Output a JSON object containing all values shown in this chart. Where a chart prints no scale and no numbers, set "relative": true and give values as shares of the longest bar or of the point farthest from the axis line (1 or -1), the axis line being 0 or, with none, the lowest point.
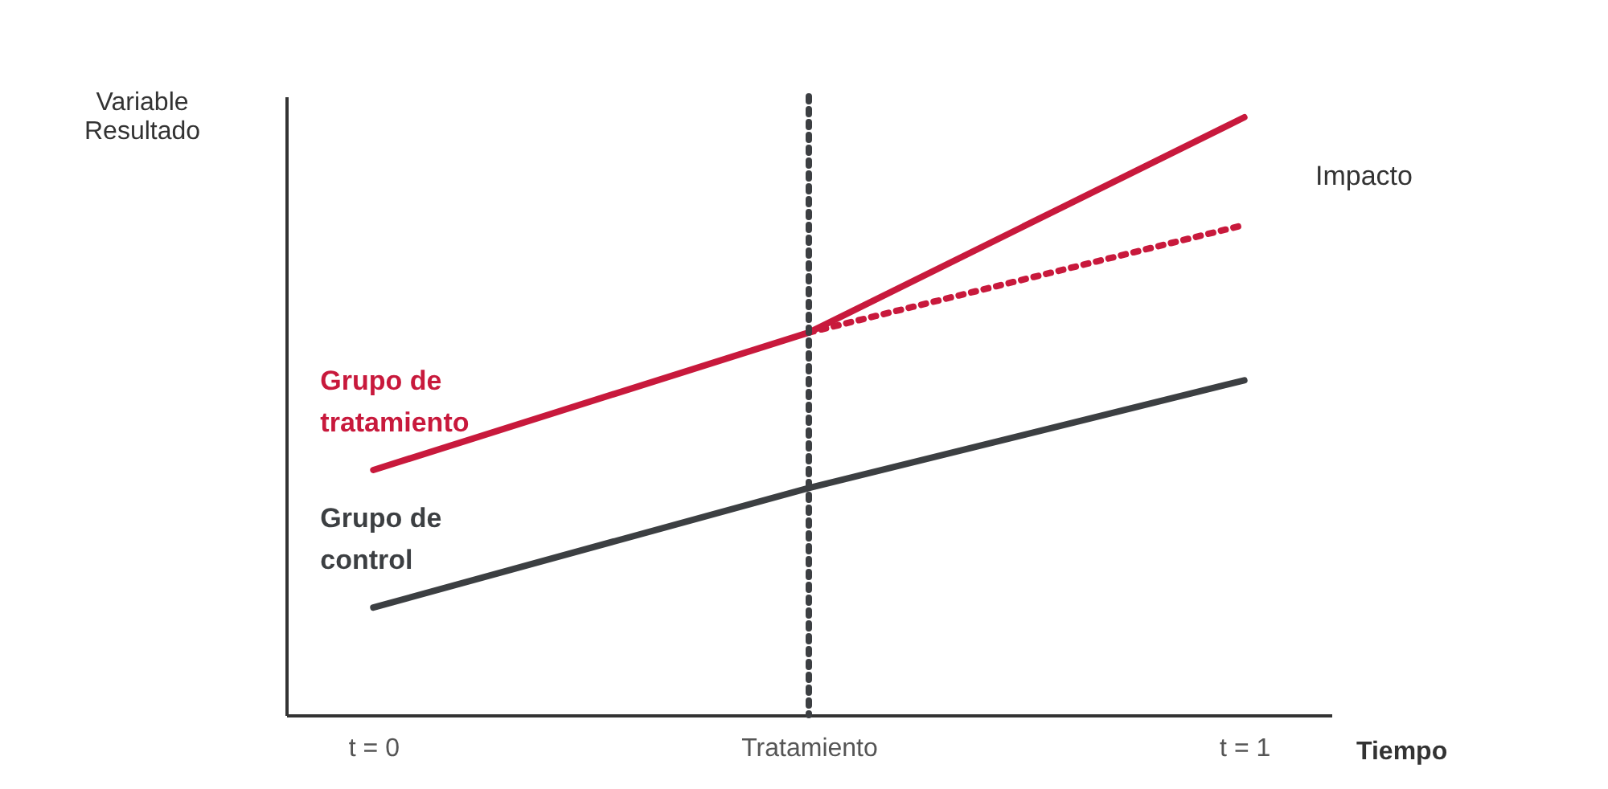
{
  "chart_data": {
    "type": "line",
    "relative": true,
    "categories": [
      "t = 0",
      "Tratamiento",
      "t = 1"
    ],
    "ylabel": "Variable Resultado",
    "xlabel": "Tiempo",
    "series": [
      {
        "name": "Grupo de tratamiento",
        "color": "#c8193c",
        "values": [
          0.41,
          0.64,
          1
        ],
        "line_style": "solid"
      },
      {
        "name": "Grupo de control",
        "color": "#3c3f42",
        "values": [
          0.18,
          0.38,
          0.56
        ],
        "line_style": "solid"
      },
      {
        "color": "#c8193c",
        "values": [
          null,
          0.64,
          0.82
        ],
        "line_style": "dotted"
      }
    ],
    "ref_lines": [
      {
        "axis": "x",
        "value": "Tratamiento",
        "color": "#3c3f42",
        "line_style": "dotted"
      }
    ],
    "annotations": [
      "Impacto"
    ]
  }
}
